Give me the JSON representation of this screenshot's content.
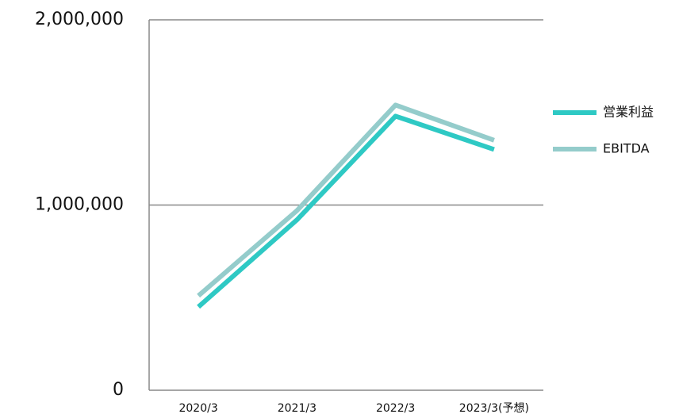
{
  "chart_data": {
    "type": "line",
    "categories": [
      "2020/3",
      "2021/3",
      "2022/3",
      "2023/3(予想)"
    ],
    "series": [
      {
        "name": "営業利益",
        "color": "#2ec9c4",
        "values": [
          450000,
          920000,
          1480000,
          1300000
        ]
      },
      {
        "name": "EBITDA",
        "color": "#94cccb",
        "values": [
          510000,
          970000,
          1540000,
          1350000
        ]
      }
    ],
    "ylim": [
      0,
      2000000
    ],
    "yticks": [
      0,
      {
        "value": 1000000,
        "label": "1,000,000"
      },
      {
        "value": 2000000,
        "label": "2,000,000"
      }
    ],
    "grid": true,
    "legend": "right"
  }
}
